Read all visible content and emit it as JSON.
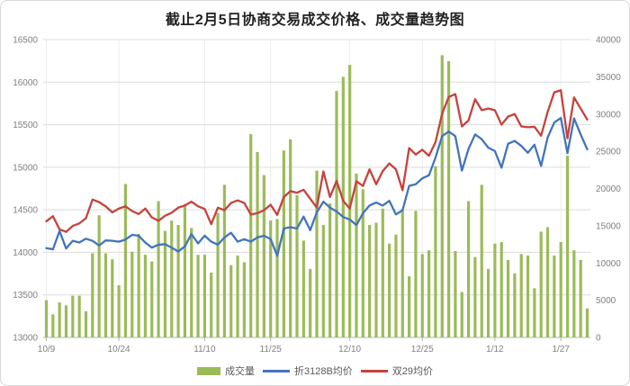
{
  "title": "截止2月5日协商交易成交价格、成交量趋势图",
  "legend": {
    "volume_label": "成交量",
    "line1_label": "折3128B均价",
    "line2_label": "双29均价"
  },
  "chart_data": {
    "type": "bar",
    "subtype": "combo-bar-and-two-lines",
    "title": "截止2月5日协商交易成交价格、成交量趋势图",
    "x_tick_labels": [
      "10/9",
      "10/24",
      "11/10",
      "11/25",
      "12/10",
      "12/25",
      "1/12",
      "1/27"
    ],
    "x_tick_indices": [
      0,
      11,
      24,
      34,
      46,
      57,
      68,
      78
    ],
    "left_axis": {
      "min": 13000,
      "max": 16500,
      "step": 500,
      "tick_labels": [
        "16500",
        "16000",
        "15500",
        "15000",
        "14500",
        "14000",
        "13500",
        "13000"
      ]
    },
    "right_axis": {
      "min": 0,
      "max": 40000,
      "step": 5000,
      "tick_labels": [
        "40000",
        "35000",
        "30000",
        "25000",
        "20000",
        "15000",
        "10000",
        "5000",
        "0"
      ]
    },
    "grid": "horizontal-and-vertical-ticks",
    "legend_position": "bottom",
    "colors": {
      "volume": "#9bbb59",
      "price_3128b": "#4274bd",
      "price_double29": "#c6423c",
      "gridline": "#dcdcdc",
      "axis_text": "#7f7f7f",
      "axis_line": "#b3b3b3"
    },
    "series": [
      {
        "name": "成交量",
        "type": "bar",
        "axis": "right",
        "color": "#9bbb59",
        "values": [
          5000,
          3100,
          4700,
          4300,
          5600,
          5600,
          3500,
          11300,
          16400,
          11300,
          10500,
          7000,
          20600,
          11500,
          13900,
          11100,
          10200,
          18300,
          14300,
          15700,
          15100,
          17900,
          14700,
          11100,
          11100,
          8700,
          16700,
          20500,
          9700,
          11000,
          10100,
          27300,
          24900,
          21800,
          15700,
          15900,
          25100,
          26600,
          19100,
          13000,
          9200,
          22400,
          15100,
          18000,
          33100,
          35000,
          36600,
          22000,
          19900,
          15100,
          15400,
          17300,
          12600,
          13800,
          17100,
          8200,
          17000,
          11200,
          11700,
          23000,
          37900,
          37100,
          11600,
          6100,
          18300,
          10800,
          20500,
          9200,
          12600,
          12800,
          10400,
          8600,
          11200,
          11000,
          6600,
          14200,
          14800,
          11000,
          12800,
          24400,
          11700,
          10400,
          3900
        ]
      },
      {
        "name": "折3128B均价",
        "type": "line",
        "axis": "left",
        "color": "#4274bd",
        "values": [
          14050,
          14035,
          14250,
          14045,
          14135,
          14115,
          14160,
          14135,
          14080,
          14140,
          14135,
          14125,
          14150,
          14205,
          14195,
          14115,
          14055,
          14090,
          14095,
          14055,
          14010,
          14070,
          14215,
          14105,
          14195,
          14125,
          14090,
          14175,
          14230,
          14125,
          14155,
          14125,
          14175,
          14195,
          14155,
          13960,
          14280,
          14295,
          14280,
          14420,
          14260,
          14470,
          14595,
          14525,
          14480,
          14415,
          14385,
          14320,
          14460,
          14550,
          14585,
          14550,
          14605,
          14445,
          14495,
          14780,
          14800,
          14870,
          14905,
          15115,
          15365,
          15420,
          15365,
          14960,
          15215,
          15385,
          15330,
          15230,
          15190,
          14995,
          15275,
          15310,
          15250,
          15170,
          15265,
          15015,
          15350,
          15525,
          15580,
          15165,
          15575,
          15385,
          15210
        ]
      },
      {
        "name": "双29均价",
        "type": "line",
        "axis": "left",
        "color": "#c6423c",
        "values": [
          14365,
          14425,
          14270,
          14240,
          14310,
          14340,
          14400,
          14620,
          14590,
          14540,
          14470,
          14515,
          14540,
          14485,
          14450,
          14515,
          14410,
          14370,
          14430,
          14465,
          14525,
          14550,
          14595,
          14540,
          14510,
          14330,
          14525,
          14495,
          14580,
          14610,
          14580,
          14445,
          14460,
          14495,
          14560,
          14440,
          14650,
          14720,
          14700,
          14735,
          14630,
          14525,
          14950,
          14650,
          14840,
          14605,
          14515,
          14835,
          14780,
          14975,
          14800,
          14955,
          15045,
          14975,
          14730,
          15225,
          15150,
          15205,
          15135,
          15295,
          15630,
          15825,
          15860,
          15480,
          15550,
          15800,
          15670,
          15690,
          15670,
          15500,
          15595,
          15625,
          15480,
          15470,
          15475,
          15370,
          15650,
          15880,
          15905,
          15340,
          15820,
          15690,
          15560
        ]
      }
    ]
  }
}
